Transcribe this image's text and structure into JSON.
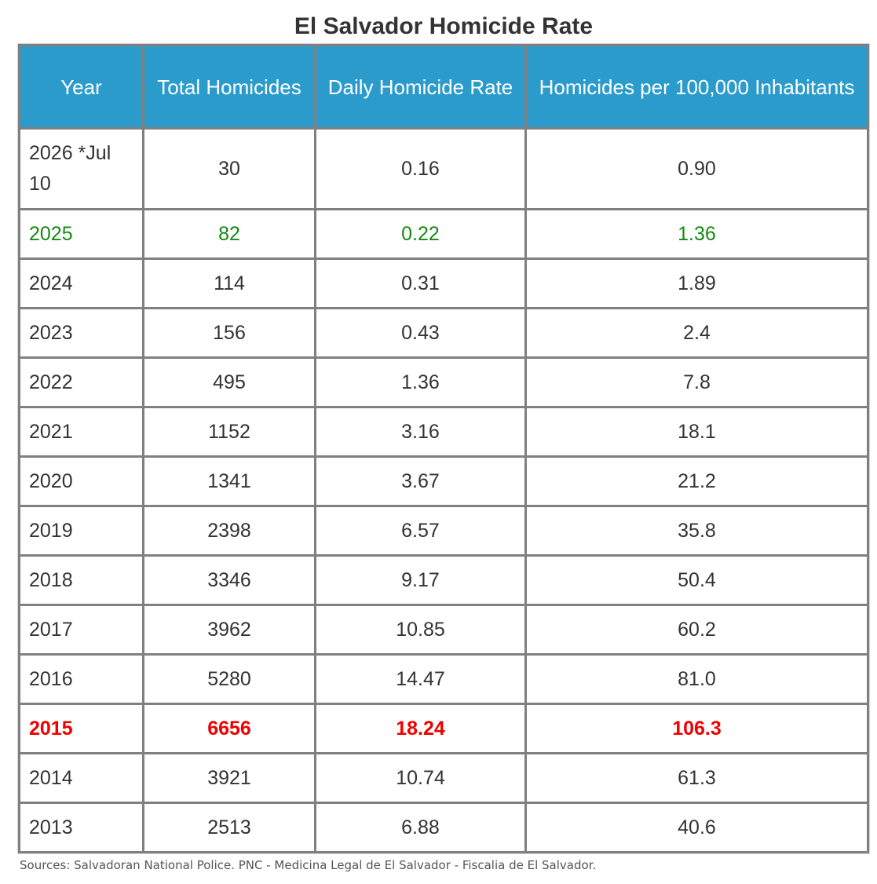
{
  "title": "El Salvador Homicide Rate",
  "table": {
    "headers": {
      "year": "Year",
      "total": "Total Homicides",
      "daily": "Daily Homicide Rate",
      "per100k": "Homicides per 100,000 Inhabitants"
    },
    "rows": [
      {
        "year": "2026 *Jul 10",
        "total": "30",
        "daily": "0.16",
        "per100k": "0.90",
        "style": "first"
      },
      {
        "year": "2025",
        "total": "82",
        "daily": "0.22",
        "per100k": "1.36",
        "style": "green"
      },
      {
        "year": "2024",
        "total": "114",
        "daily": "0.31",
        "per100k": "1.89",
        "style": ""
      },
      {
        "year": "2023",
        "total": "156",
        "daily": "0.43",
        "per100k": "2.4",
        "style": ""
      },
      {
        "year": "2022",
        "total": "495",
        "daily": "1.36",
        "per100k": "7.8",
        "style": ""
      },
      {
        "year": "2021",
        "total": "1152",
        "daily": "3.16",
        "per100k": "18.1",
        "style": ""
      },
      {
        "year": "2020",
        "total": "1341",
        "daily": "3.67",
        "per100k": "21.2",
        "style": ""
      },
      {
        "year": "2019",
        "total": "2398",
        "daily": "6.57",
        "per100k": "35.8",
        "style": ""
      },
      {
        "year": "2018",
        "total": "3346",
        "daily": "9.17",
        "per100k": "50.4",
        "style": ""
      },
      {
        "year": "2017",
        "total": "3962",
        "daily": "10.85",
        "per100k": "60.2",
        "style": ""
      },
      {
        "year": "2016",
        "total": "5280",
        "daily": "14.47",
        "per100k": "81.0",
        "style": ""
      },
      {
        "year": "2015",
        "total": "6656",
        "daily": "18.24",
        "per100k": "106.3",
        "style": "red"
      },
      {
        "year": "2014",
        "total": "3921",
        "daily": "10.74",
        "per100k": "61.3",
        "style": ""
      },
      {
        "year": "2013",
        "total": "2513",
        "daily": "6.88",
        "per100k": "40.6",
        "style": ""
      }
    ]
  },
  "source": "Sources: Salvadoran National Police. PNC - Medicina Legal de El Salvador - Fiscalia de El Salvador.",
  "colors": {
    "header_bg": "#2b9bcc",
    "header_text": "#ffffff",
    "highlight_green": "#138a13",
    "highlight_red": "#f00000",
    "border": "#808080"
  }
}
